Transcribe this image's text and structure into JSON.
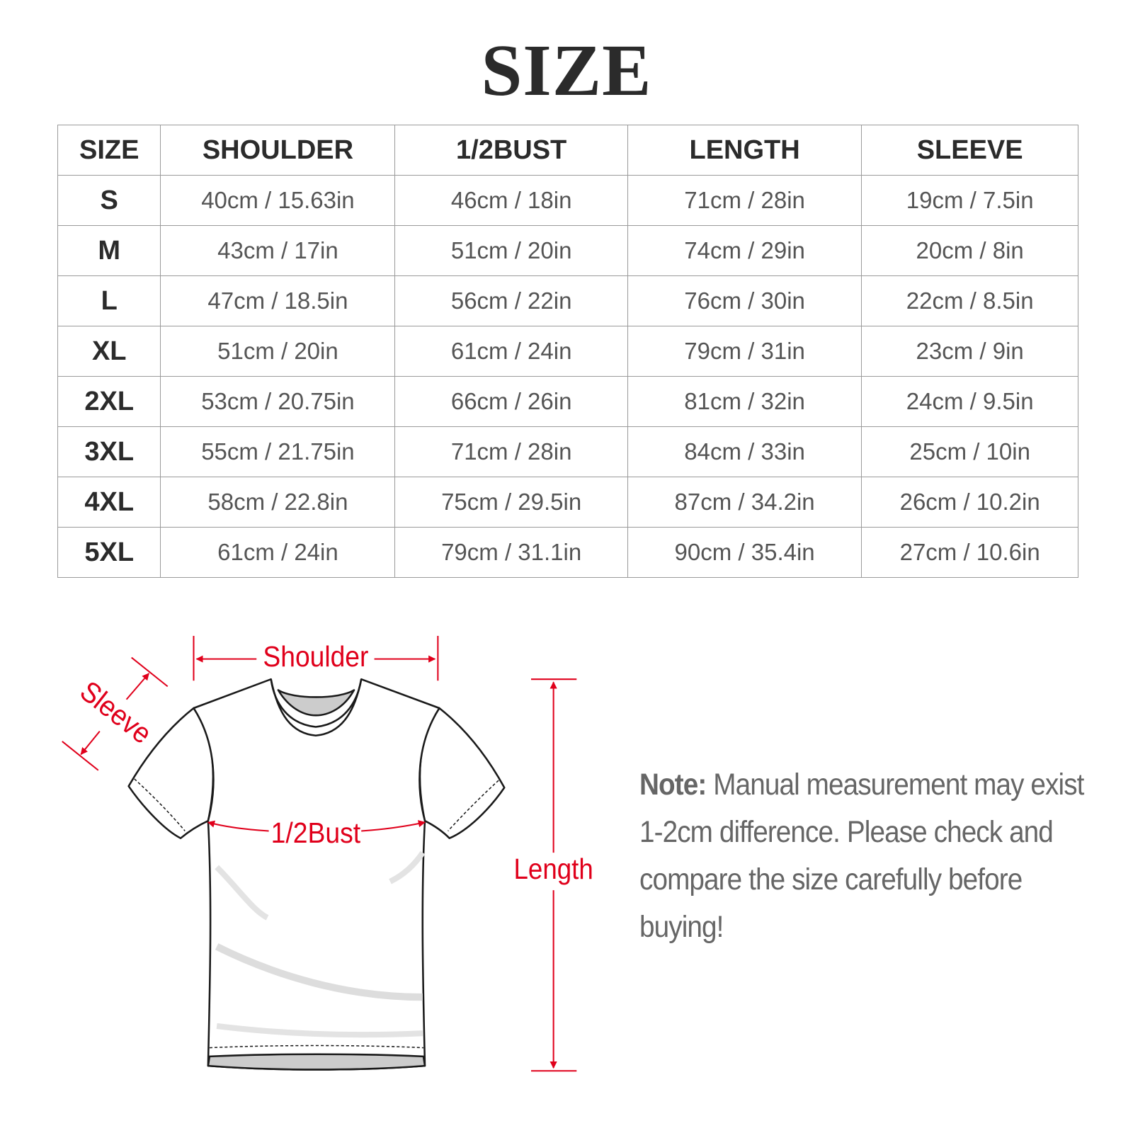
{
  "title": "SIZE",
  "table": {
    "headers": [
      "SIZE",
      "SHOULDER",
      "1/2BUST",
      "LENGTH",
      "SLEEVE"
    ],
    "rows": [
      [
        "S",
        "40cm / 15.63in",
        "46cm / 18in",
        "71cm / 28in",
        "19cm / 7.5in"
      ],
      [
        "M",
        "43cm / 17in",
        "51cm / 20in",
        "74cm / 29in",
        "20cm / 8in"
      ],
      [
        "L",
        "47cm / 18.5in",
        "56cm / 22in",
        "76cm / 30in",
        "22cm / 8.5in"
      ],
      [
        "XL",
        "51cm / 20in",
        "61cm / 24in",
        "79cm / 31in",
        "23cm / 9in"
      ],
      [
        "2XL",
        "53cm / 20.75in",
        "66cm / 26in",
        "81cm / 32in",
        "24cm / 9.5in"
      ],
      [
        "3XL",
        "55cm / 21.75in",
        "71cm / 28in",
        "84cm / 33in",
        "25cm / 10in"
      ],
      [
        "4XL",
        "58cm / 22.8in",
        "75cm / 29.5in",
        "87cm / 34.2in",
        "26cm / 10.2in"
      ],
      [
        "5XL",
        "61cm / 24in",
        "79cm / 31.1in",
        "90cm / 35.4in",
        "27cm / 10.6in"
      ]
    ]
  },
  "diagram": {
    "labels": {
      "shoulder": "Shoulder",
      "sleeve": "Sleeve",
      "bust": "1/2Bust",
      "length": "Length"
    },
    "measure_color": "#e0001b"
  },
  "note": {
    "label": "Note:",
    "text": " Manual measurement may exist 1-2cm difference. Please check and compare the size carefully before buying!"
  }
}
